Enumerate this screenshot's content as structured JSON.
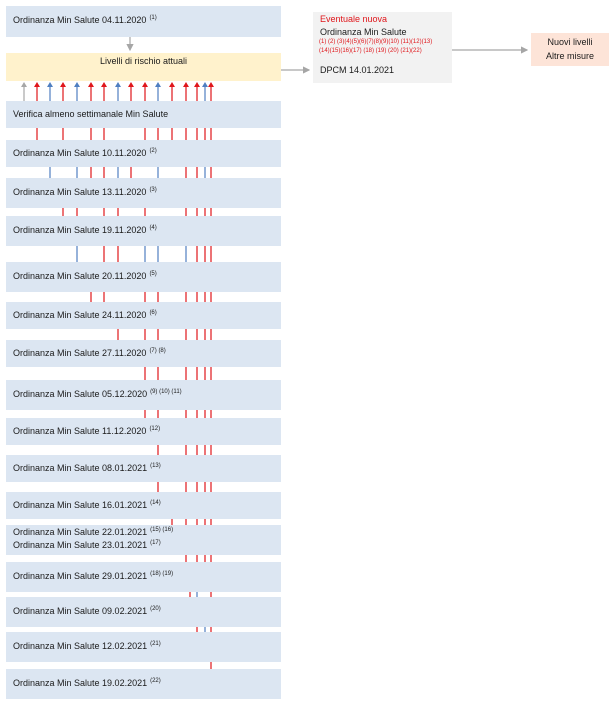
{
  "colors": {
    "red": "#e0161b",
    "blue": "#4f7fc1",
    "gray": "#a6a6a6",
    "box_blue": "#dce6f2",
    "risk_yellow": "#fff2cc",
    "peach": "#fde4d8"
  },
  "top_box": {
    "label": "Ordinanza Min Salute 04.11.2020",
    "ref": "(1)"
  },
  "risk_box": {
    "label": "Livelli  di rischio attuali"
  },
  "eventual_box": {
    "title": "Eventuale nuova",
    "subtitle": "Ordinanza Min Salute",
    "refs_line1": "(1) (2) (3)(4)(5)(6)(7)(8)(9)(10) (11)(12)(13)",
    "refs_line2": "(14)(15)(16)(17) (18) (19) (20) (21)(22)",
    "dpcm": "DPCM 14.01.2021"
  },
  "new_levels_box": {
    "line1": "Nuovi livelli",
    "line2": "Altre misure"
  },
  "rows": [
    {
      "label": "Verifica almeno settimanale Min Salute",
      "ref": ""
    },
    {
      "label": "Ordinanza Min Salute 10.11.2020",
      "ref": "(2)"
    },
    {
      "label": "Ordinanza Min Salute 13.11.2020",
      "ref": "(3)"
    },
    {
      "label": "Ordinanza Min Salute 19.11.2020",
      "ref": "(4)"
    },
    {
      "label": "Ordinanza Min Salute 20.11.2020",
      "ref": "(5)"
    },
    {
      "label": "Ordinanza Min Salute 24.11.2020",
      "ref": "(6)"
    },
    {
      "label": "Ordinanza Min Salute 27.11.2020",
      "ref": "(7) (8)"
    },
    {
      "label": "Ordinanza Min Salute 05.12.2020",
      "ref": "(9)  (10)   (11)"
    },
    {
      "label": "Ordinanza Min Salute 11.12.2020",
      "ref": "(12)"
    },
    {
      "label": "Ordinanza Min Salute 08.01.2021",
      "ref": "(13)"
    },
    {
      "label": "Ordinanza Min Salute 16.01.2021",
      "ref": "(14)"
    },
    {
      "label": "Ordinanza Min Salute 22.01.2021",
      "ref": "(15)  (16)",
      "label2": "Ordinanza Min Salute 23.01.2021",
      "ref2": "(17)"
    },
    {
      "label": "Ordinanza Min Salute 29.01.2021",
      "ref": "(18)  (19)"
    },
    {
      "label": "Ordinanza Min Salute 09.02.2021",
      "ref": "(20)"
    },
    {
      "label": "Ordinanza Min Salute 12.02.2021",
      "ref": "(21)"
    },
    {
      "label": "Ordinanza Min Salute 19.02.2021",
      "ref": "(22)"
    }
  ]
}
